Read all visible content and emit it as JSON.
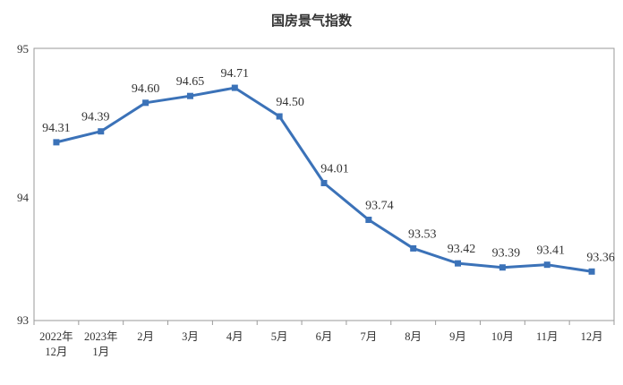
{
  "chart_data": {
    "type": "line",
    "title": "国房景气指数",
    "categories": [
      [
        "2022年",
        "12月"
      ],
      [
        "2023年",
        "1月"
      ],
      [
        "2月"
      ],
      [
        "3月"
      ],
      [
        "4月"
      ],
      [
        "5月"
      ],
      [
        "6月"
      ],
      [
        "7月"
      ],
      [
        "8月"
      ],
      [
        "9月"
      ],
      [
        "10月"
      ],
      [
        "11月"
      ],
      [
        "12月"
      ]
    ],
    "series": [
      {
        "values": [
          94.31,
          94.39,
          94.6,
          94.65,
          94.71,
          94.5,
          94.01,
          93.74,
          93.53,
          93.42,
          93.39,
          93.41,
          93.36
        ],
        "labels": [
          "94.31",
          "94.39",
          "94.60",
          "94.65",
          "94.71",
          "94.50",
          "94.01",
          "93.74",
          "93.53",
          "93.42",
          "93.39",
          "93.41",
          "93.36"
        ],
        "color": "#3b72b8"
      }
    ],
    "ylim": [
      93,
      95
    ],
    "yticks": [
      "93",
      "94",
      "95"
    ],
    "grid": false
  }
}
